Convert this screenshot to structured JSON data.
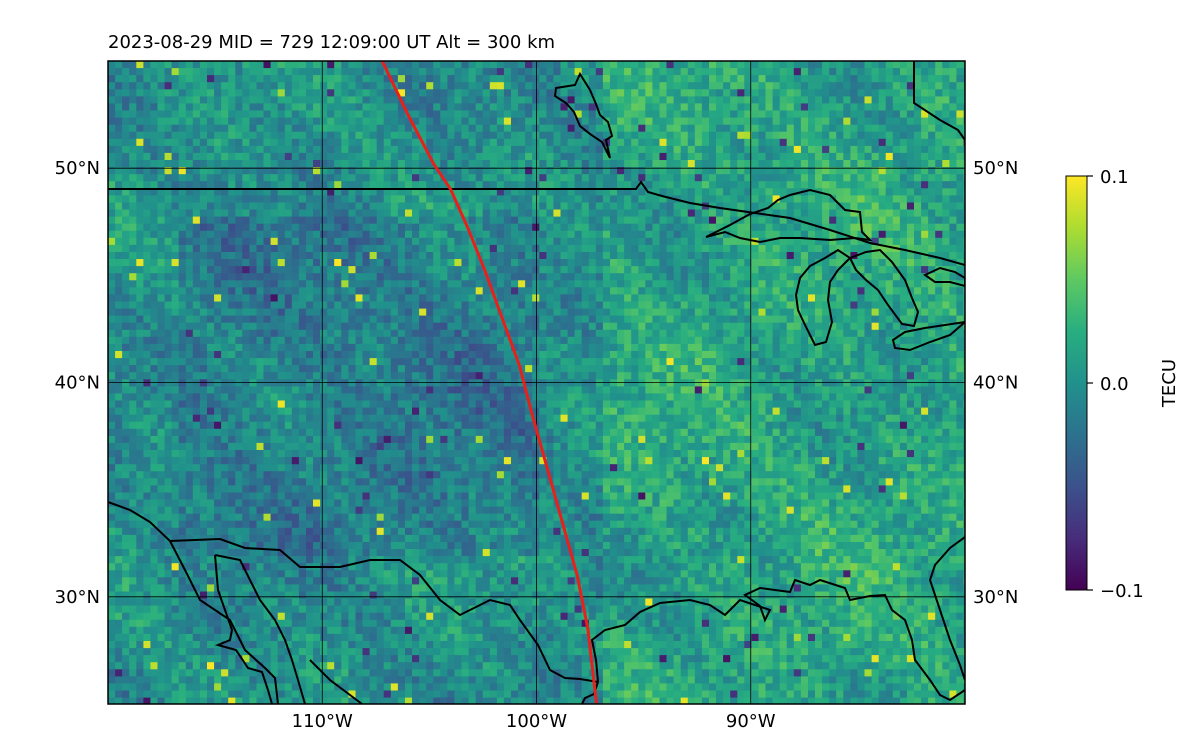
{
  "title": "2023-08-29  MID = 729    12:09:00  UT  Alt = 300 km",
  "colorbar": {
    "label": "TECU",
    "colormap": "viridis",
    "ticks": [
      "0.1",
      "0.0",
      "−0.1"
    ],
    "vmin": -0.1,
    "vmax": 0.1
  },
  "map": {
    "extent": {
      "lon_min": -120,
      "lon_max": -80,
      "lat_min": 25,
      "lat_max": 55
    },
    "lon_ticks": [
      {
        "value": -110,
        "label": "110°W"
      },
      {
        "value": -100,
        "label": "100°W"
      },
      {
        "value": -90,
        "label": "90°W"
      }
    ],
    "lat_ticks": [
      {
        "value": 50,
        "label": "50°N"
      },
      {
        "value": 40,
        "label": "40°N"
      },
      {
        "value": 30,
        "label": "30°N"
      }
    ],
    "track_color": "#e8201c",
    "track": [
      [
        -107.2,
        55
      ],
      [
        -106.0,
        52.5
      ],
      [
        -104.8,
        50.2
      ],
      [
        -104.0,
        49.0
      ],
      [
        -103.2,
        47.2
      ],
      [
        -102.4,
        45.2
      ],
      [
        -101.6,
        43.0
      ],
      [
        -100.8,
        40.8
      ],
      [
        -100.2,
        38.5
      ],
      [
        -99.5,
        36.0
      ],
      [
        -98.8,
        33.5
      ],
      [
        -98.1,
        31.0
      ],
      [
        -97.6,
        28.5
      ],
      [
        -97.2,
        25
      ]
    ]
  }
}
